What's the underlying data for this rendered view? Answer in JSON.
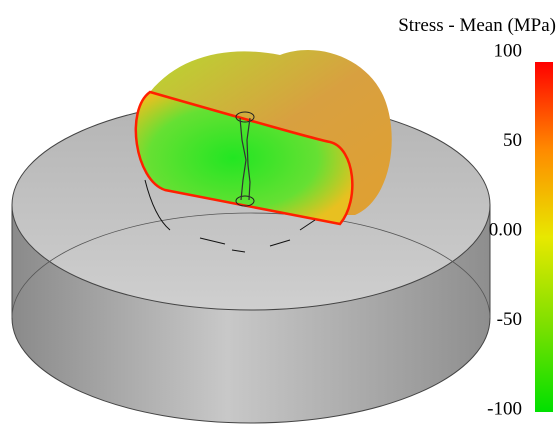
{
  "colorbar": {
    "title": "Stress - Mean (MPa)",
    "ticks": [
      "100",
      "50",
      "0.00",
      "-50",
      "-100"
    ]
  }
}
